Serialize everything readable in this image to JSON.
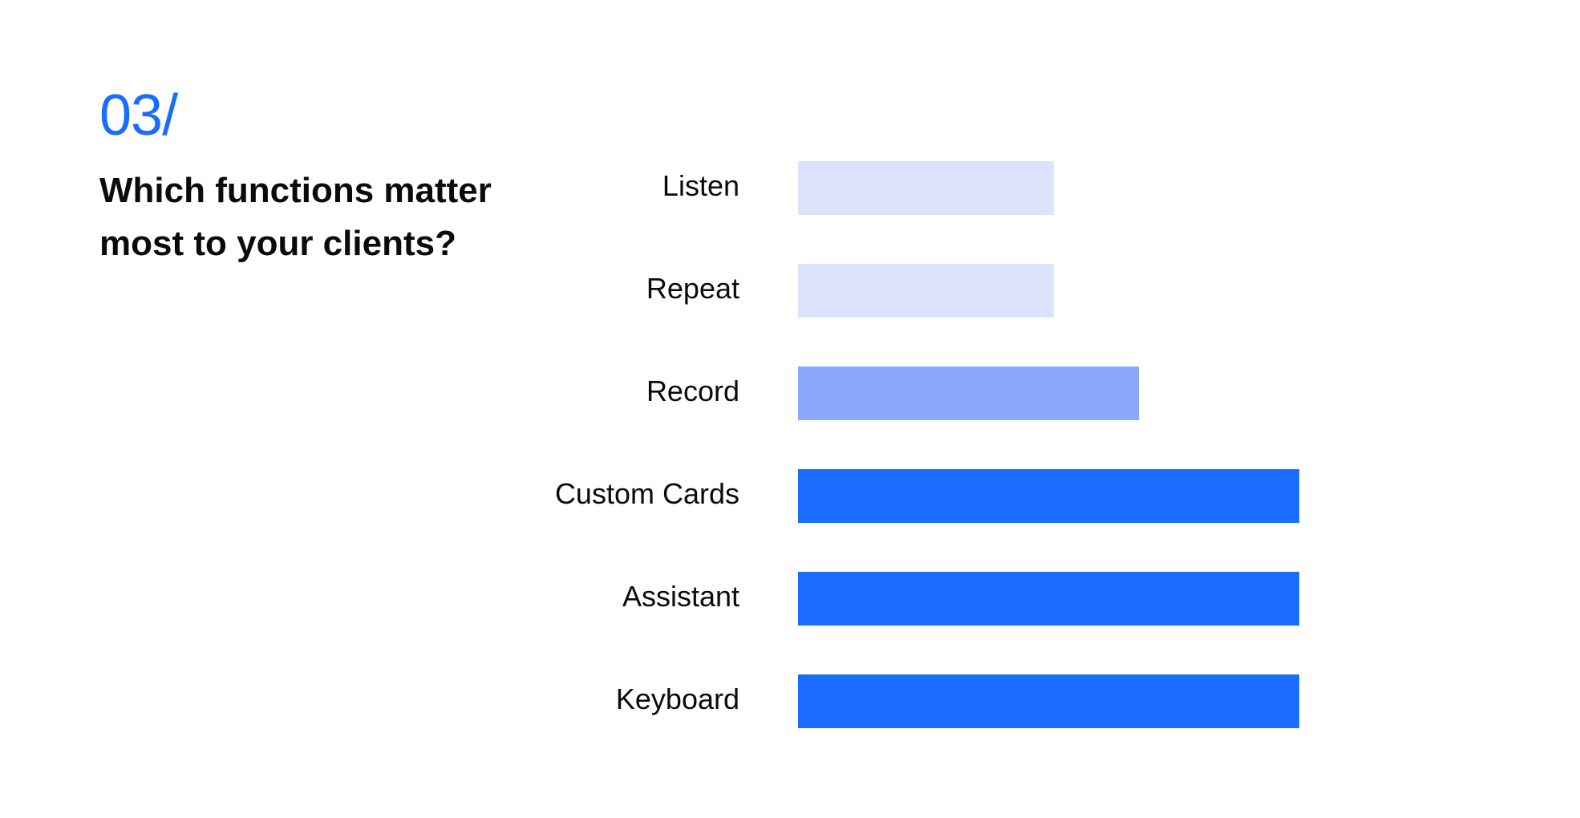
{
  "header": {
    "number": "03/",
    "question": "Which functions matter most to your clients?"
  },
  "chart_data": {
    "type": "bar",
    "orientation": "horizontal",
    "title": "",
    "xlabel": "",
    "ylabel": "",
    "grid": false,
    "categories": [
      "Listen",
      "Repeat",
      "Record",
      "Custom Cards",
      "Assistant",
      "Keyboard"
    ],
    "values": [
      51,
      51,
      68,
      100,
      100,
      100
    ],
    "xlim": [
      0,
      100
    ],
    "colors": [
      "#dce3fd",
      "#dce3fd",
      "#8aa8fe",
      "#1a6cff",
      "#1a6cff",
      "#1a6cff"
    ]
  }
}
